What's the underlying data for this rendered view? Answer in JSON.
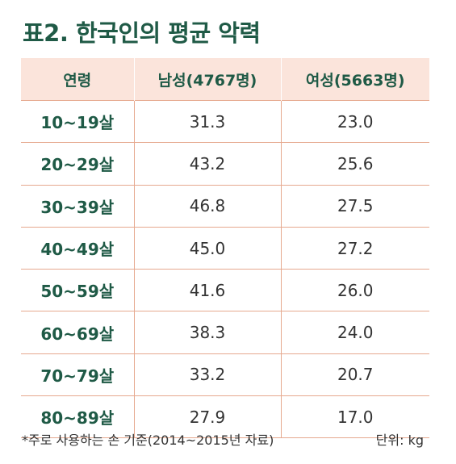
{
  "title": "표2. 한국인의 평균 악력",
  "table": {
    "headers": [
      "연령",
      "남성(4767명)",
      "여성(5663명)"
    ],
    "rows": [
      {
        "age": "10~19살",
        "male": "31.3",
        "female": "23.0"
      },
      {
        "age": "20~29살",
        "male": "43.2",
        "female": "25.6"
      },
      {
        "age": "30~39살",
        "male": "46.8",
        "female": "27.5"
      },
      {
        "age": "40~49살",
        "male": "45.0",
        "female": "27.2"
      },
      {
        "age": "50~59살",
        "male": "41.6",
        "female": "26.0"
      },
      {
        "age": "60~69살",
        "male": "38.3",
        "female": "24.0"
      },
      {
        "age": "70~79살",
        "male": "33.2",
        "female": "20.7"
      },
      {
        "age": "80~89살",
        "male": "27.9",
        "female": "17.0"
      }
    ]
  },
  "footnote": "*주로 사용하는 손 기준(2014~2015년 자료)",
  "unit": "단위: kg",
  "colors": {
    "title": "#1f5a46",
    "header_bg": "#fbe4db",
    "grid": "#e6a98f"
  }
}
